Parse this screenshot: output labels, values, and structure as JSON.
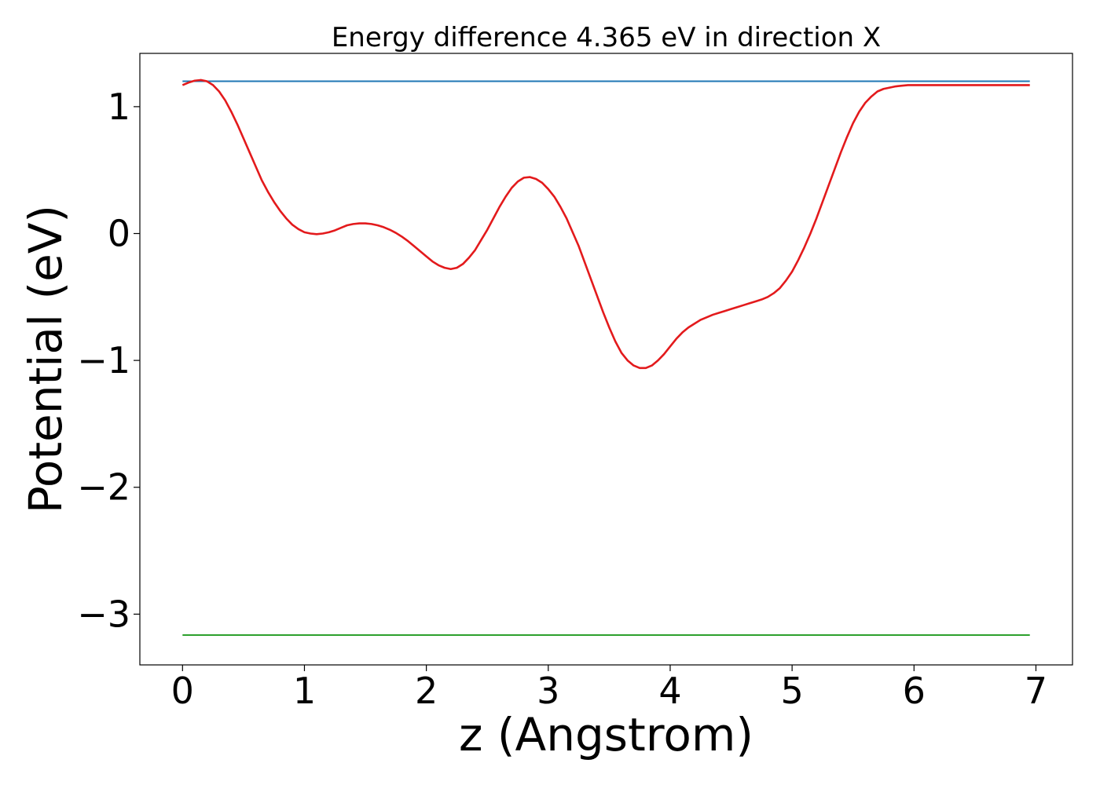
{
  "chart_data": {
    "type": "line",
    "title": "Energy difference 4.365 eV in direction X",
    "xlabel": "z (Angstrom)",
    "ylabel": "Potential (eV)",
    "xlim": [
      -0.35,
      7.3
    ],
    "ylim": [
      -3.4,
      1.42
    ],
    "xticks": [
      0,
      1,
      2,
      3,
      4,
      5,
      6,
      7
    ],
    "xtick_labels": [
      "0",
      "1",
      "2",
      "3",
      "4",
      "5",
      "6",
      "7"
    ],
    "yticks": [
      1,
      0,
      -1,
      -2,
      -3
    ],
    "ytick_labels": [
      "1",
      "0",
      "−1",
      "−2",
      "−3"
    ],
    "grid": false,
    "legend": "none",
    "series": [
      {
        "color": "#1f77b4",
        "x": [
          0,
          6.95
        ],
        "y": [
          1.2,
          1.2
        ]
      },
      {
        "color": "#2ca02c",
        "x": [
          0,
          6.95
        ],
        "y": [
          -3.165,
          -3.165
        ]
      },
      {
        "color": "#e31a1c",
        "x": [
          0,
          0.05,
          0.1,
          0.15,
          0.2,
          0.25,
          0.3,
          0.35,
          0.4,
          0.45,
          0.5,
          0.55,
          0.6,
          0.65,
          0.7,
          0.75,
          0.8,
          0.85,
          0.9,
          0.95,
          1.0,
          1.05,
          1.1,
          1.15,
          1.2,
          1.25,
          1.3,
          1.35,
          1.4,
          1.45,
          1.5,
          1.55,
          1.6,
          1.65,
          1.7,
          1.75,
          1.8,
          1.85,
          1.9,
          1.95,
          2.0,
          2.05,
          2.1,
          2.15,
          2.2,
          2.25,
          2.3,
          2.35,
          2.4,
          2.45,
          2.5,
          2.55,
          2.6,
          2.65,
          2.7,
          2.75,
          2.8,
          2.85,
          2.9,
          2.95,
          3.0,
          3.05,
          3.1,
          3.15,
          3.2,
          3.25,
          3.3,
          3.35,
          3.4,
          3.45,
          3.5,
          3.55,
          3.6,
          3.65,
          3.7,
          3.75,
          3.8,
          3.85,
          3.9,
          3.95,
          4.0,
          4.05,
          4.1,
          4.15,
          4.2,
          4.25,
          4.3,
          4.35,
          4.4,
          4.45,
          4.5,
          4.55,
          4.6,
          4.65,
          4.7,
          4.75,
          4.8,
          4.85,
          4.9,
          4.95,
          5.0,
          5.05,
          5.1,
          5.15,
          5.2,
          5.25,
          5.3,
          5.35,
          5.4,
          5.45,
          5.5,
          5.55,
          5.6,
          5.65,
          5.7,
          5.75,
          5.8,
          5.85,
          5.9,
          5.95,
          6.0,
          6.05,
          6.1,
          6.15,
          6.2,
          6.25,
          6.3,
          6.35,
          6.4,
          6.45,
          6.5,
          6.55,
          6.6,
          6.65,
          6.7,
          6.75,
          6.8,
          6.85,
          6.9,
          6.95
        ],
        "y": [
          1.17,
          1.19,
          1.205,
          1.21,
          1.2,
          1.17,
          1.12,
          1.05,
          0.96,
          0.86,
          0.75,
          0.64,
          0.53,
          0.42,
          0.33,
          0.25,
          0.18,
          0.12,
          0.07,
          0.035,
          0.01,
          0.0,
          -0.005,
          0.0,
          0.01,
          0.025,
          0.045,
          0.065,
          0.075,
          0.08,
          0.08,
          0.075,
          0.065,
          0.05,
          0.03,
          0.005,
          -0.025,
          -0.06,
          -0.1,
          -0.14,
          -0.18,
          -0.22,
          -0.25,
          -0.27,
          -0.28,
          -0.27,
          -0.24,
          -0.19,
          -0.13,
          -0.05,
          0.03,
          0.12,
          0.21,
          0.29,
          0.36,
          0.41,
          0.44,
          0.445,
          0.43,
          0.4,
          0.35,
          0.29,
          0.21,
          0.12,
          0.01,
          -0.1,
          -0.23,
          -0.36,
          -0.49,
          -0.62,
          -0.74,
          -0.85,
          -0.94,
          -1.0,
          -1.04,
          -1.06,
          -1.06,
          -1.04,
          -1.0,
          -0.95,
          -0.89,
          -0.83,
          -0.78,
          -0.74,
          -0.71,
          -0.68,
          -0.66,
          -0.64,
          -0.625,
          -0.61,
          -0.595,
          -0.58,
          -0.565,
          -0.55,
          -0.535,
          -0.52,
          -0.5,
          -0.47,
          -0.43,
          -0.37,
          -0.3,
          -0.21,
          -0.11,
          0.0,
          0.12,
          0.25,
          0.38,
          0.51,
          0.64,
          0.76,
          0.87,
          0.96,
          1.03,
          1.08,
          1.12,
          1.14,
          1.15,
          1.16,
          1.165,
          1.17,
          1.17,
          1.17,
          1.17,
          1.17,
          1.17,
          1.17,
          1.17,
          1.17,
          1.17,
          1.17,
          1.17,
          1.17,
          1.17,
          1.17,
          1.17,
          1.17,
          1.17,
          1.17,
          1.17,
          1.17
        ]
      }
    ]
  }
}
